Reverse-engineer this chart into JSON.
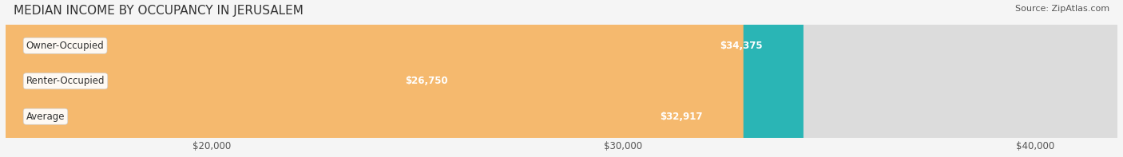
{
  "title": "MEDIAN INCOME BY OCCUPANCY IN JERUSALEM",
  "source": "Source: ZipAtlas.com",
  "categories": [
    "Owner-Occupied",
    "Renter-Occupied",
    "Average"
  ],
  "values": [
    34375,
    26750,
    32917
  ],
  "labels": [
    "$34,375",
    "$26,750",
    "$32,917"
  ],
  "bar_colors": [
    "#2ab5b5",
    "#c4a8d0",
    "#f5b96e"
  ],
  "bar_edge_colors": [
    "#2ab5b5",
    "#c4a8d0",
    "#f5b96e"
  ],
  "background_color": "#f0f0f0",
  "bar_bg_color": "#e0e0e0",
  "xlim_min": 15000,
  "xlim_max": 42000,
  "xticks": [
    20000,
    30000,
    40000
  ],
  "xtick_labels": [
    "$20,000",
    "$30,000",
    "$40,000"
  ],
  "title_fontsize": 11,
  "label_fontsize": 8.5,
  "tick_fontsize": 8.5,
  "source_fontsize": 8
}
